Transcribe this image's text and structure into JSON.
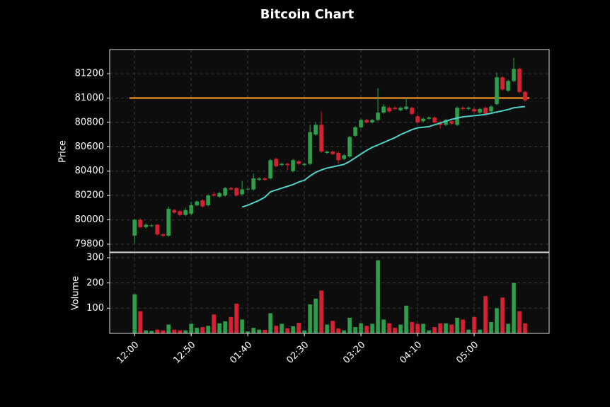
{
  "chart_data": {
    "type": "candlestick",
    "title": "Bitcoin Chart",
    "ylabel": "Price",
    "volume_label": "Volume",
    "up_color": "#2e9e4a",
    "down_color": "#d42230",
    "xlim": [
      -4.4,
      73.25
    ],
    "xticks": [
      {
        "value": 0,
        "label": "12:00"
      },
      {
        "value": 10,
        "label": "12:50"
      },
      {
        "value": 20,
        "label": "01:40"
      },
      {
        "value": 30,
        "label": "02:30"
      },
      {
        "value": 40,
        "label": "03:20"
      },
      {
        "value": 50,
        "label": "04:10"
      },
      {
        "value": 60,
        "label": "05:00"
      }
    ],
    "ylim": [
      79736,
      81398
    ],
    "yticks": [
      79800,
      80000,
      80200,
      80400,
      80600,
      80800,
      81000,
      81200
    ],
    "volume_ylim": [
      0,
      320
    ],
    "volume_yticks": [
      100,
      200,
      300
    ],
    "grid": true,
    "open": [
      79870,
      80000,
      79940,
      79950,
      79960,
      79880,
      79870,
      80080,
      80070,
      80040,
      80050,
      80120,
      80160,
      80120,
      80210,
      80190,
      80200,
      80260,
      80260,
      80210,
      80250,
      80250,
      80330,
      80340,
      80340,
      80500,
      80450,
      80460,
      80400,
      80480,
      80450,
      80460,
      80700,
      80780,
      80550,
      80560,
      80550,
      80500,
      80520,
      80690,
      80760,
      80820,
      80800,
      80820,
      80880,
      80920,
      80920,
      80900,
      80910,
      80920,
      80850,
      80810,
      80830,
      80840,
      80800,
      80780,
      80810,
      80780,
      80920,
      80910,
      80910,
      80880,
      80920,
      80890,
      80950,
      81170,
      81060,
      81140,
      81240,
      81050
    ],
    "high": [
      80010,
      80010,
      79970,
      79965,
      79965,
      79890,
      80110,
      80090,
      80080,
      80100,
      80150,
      80160,
      80170,
      80210,
      80230,
      80230,
      80270,
      80270,
      80270,
      80320,
      80260,
      80380,
      80350,
      80350,
      80500,
      80510,
      80470,
      80470,
      80500,
      80490,
      80470,
      80780,
      80800,
      80890,
      80570,
      80570,
      80560,
      80540,
      80690,
      80770,
      80830,
      80830,
      80830,
      81080,
      80950,
      80930,
      80930,
      80930,
      81000,
      80930,
      80860,
      80840,
      80850,
      80850,
      80810,
      80830,
      80820,
      80930,
      80930,
      80930,
      80920,
      80920,
      80930,
      80940,
      81210,
      81180,
      81150,
      81330,
      81250,
      81060
    ],
    "low": [
      79810,
      79930,
      79930,
      79940,
      79870,
      79860,
      79860,
      80050,
      80030,
      80030,
      80040,
      80110,
      80100,
      80110,
      80190,
      80180,
      80190,
      80240,
      80190,
      80200,
      80240,
      80240,
      80320,
      80320,
      80330,
      80430,
      80440,
      80410,
      80390,
      80450,
      80440,
      80450,
      80690,
      80550,
      80540,
      80530,
      80460,
      80490,
      80510,
      80680,
      80750,
      80790,
      80790,
      80810,
      80870,
      80880,
      80900,
      80890,
      80900,
      80860,
      80790,
      80800,
      80820,
      80790,
      80750,
      80770,
      80780,
      80770,
      80900,
      80900,
      80880,
      80870,
      80860,
      80880,
      80940,
      81060,
      81050,
      81130,
      81040,
      80970
    ],
    "close": [
      80000,
      79940,
      79960,
      79955,
      79880,
      79870,
      80090,
      80060,
      80040,
      80080,
      80120,
      80150,
      80110,
      80200,
      80200,
      80220,
      80260,
      80250,
      80200,
      80250,
      80255,
      80340,
      80340,
      80330,
      80490,
      80440,
      80460,
      80450,
      80490,
      80460,
      80460,
      80720,
      80780,
      80560,
      80560,
      80540,
      80490,
      80530,
      80680,
      80760,
      80820,
      80800,
      80820,
      80880,
      80930,
      80890,
      80910,
      80920,
      80930,
      80870,
      80800,
      80830,
      80840,
      80800,
      80780,
      80820,
      80790,
      80920,
      80910,
      80920,
      80890,
      80910,
      80870,
      80930,
      81170,
      81070,
      81140,
      81240,
      81050,
      80980
    ],
    "volume": [
      155,
      88,
      12,
      10,
      15,
      12,
      35,
      15,
      12,
      12,
      38,
      22,
      25,
      30,
      75,
      40,
      48,
      65,
      118,
      55,
      8,
      22,
      15,
      14,
      80,
      30,
      38,
      20,
      28,
      42,
      12,
      115,
      138,
      170,
      35,
      50,
      20,
      12,
      62,
      25,
      40,
      30,
      38,
      290,
      55,
      40,
      22,
      35,
      110,
      45,
      38,
      38,
      12,
      25,
      40,
      40,
      35,
      62,
      55,
      15,
      65,
      15,
      148,
      45,
      100,
      142,
      38,
      200,
      88,
      40
    ],
    "ma": {
      "color": "#4fd1c5",
      "values": [
        null,
        null,
        null,
        null,
        null,
        null,
        null,
        null,
        null,
        null,
        null,
        null,
        null,
        null,
        null,
        null,
        null,
        null,
        null,
        80105,
        80120,
        80140,
        80160,
        80185,
        80230,
        80245,
        80260,
        80275,
        80290,
        80310,
        80325,
        80360,
        80390,
        80410,
        80425,
        80435,
        80445,
        80455,
        80480,
        80510,
        80540,
        80570,
        80595,
        80615,
        80635,
        80655,
        80675,
        80700,
        80720,
        80740,
        80755,
        80760,
        80765,
        80780,
        80795,
        80810,
        80825,
        80835,
        80845,
        80850,
        80855,
        80860,
        80865,
        80875,
        80885,
        80895,
        80905,
        80920,
        80925,
        80930
      ]
    },
    "hline": {
      "value": 81000,
      "color": "#f5952a"
    }
  }
}
